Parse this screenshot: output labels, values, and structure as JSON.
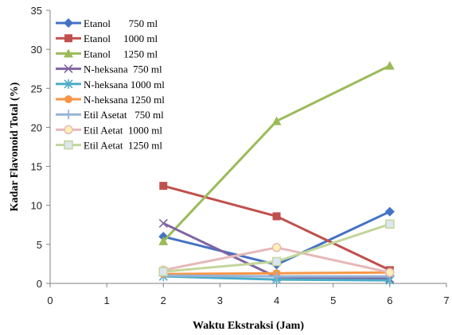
{
  "chart_data": {
    "type": "line",
    "title": "",
    "xlabel": "Waktu Ekstraksi (Jam)",
    "ylabel": "Kadar Flavonoid Total  (%)",
    "xlim": [
      0,
      7
    ],
    "ylim": [
      0,
      35
    ],
    "xticks": [
      0,
      1,
      2,
      3,
      4,
      5,
      6,
      7
    ],
    "yticks": [
      0,
      5,
      10,
      15,
      20,
      25,
      30,
      35
    ],
    "grid": false,
    "legend_position": "top-left",
    "x": [
      2,
      4,
      6
    ],
    "series": [
      {
        "name": "Etanol       750 ml",
        "color": "#4472C4",
        "marker": "diamond",
        "values": [
          6.0,
          2.4,
          9.2
        ]
      },
      {
        "name": "Etanol     1000 ml",
        "color": "#C0504D",
        "marker": "square",
        "values": [
          12.5,
          8.6,
          1.7
        ]
      },
      {
        "name": "Etanol     1250 ml",
        "color": "#9BBB59",
        "marker": "triangle",
        "values": [
          5.4,
          20.8,
          27.9
        ]
      },
      {
        "name": "N-heksana  750 ml",
        "color": "#8064A2",
        "marker": "x",
        "values": [
          7.7,
          0.8,
          0.6
        ]
      },
      {
        "name": "N-heksana 1000 ml",
        "color": "#4BACC6",
        "marker": "star",
        "values": [
          0.9,
          0.5,
          0.4
        ]
      },
      {
        "name": "N-heksana 1250 ml",
        "color": "#F79646",
        "marker": "circle",
        "values": [
          1.2,
          1.3,
          1.4
        ]
      },
      {
        "name": "Etil Asetat   750 ml",
        "color": "#95B3D7",
        "marker": "plus",
        "values": [
          1.0,
          0.9,
          0.9
        ]
      },
      {
        "name": "Etil Aetat  1000 ml",
        "color": "#E6B9B8",
        "marker": "circle-open",
        "values": [
          1.7,
          4.6,
          1.4
        ]
      },
      {
        "name": "Etil Aetat  1250 ml",
        "color": "#C3D69B",
        "marker": "square-open",
        "values": [
          1.5,
          2.8,
          7.6
        ]
      }
    ]
  }
}
